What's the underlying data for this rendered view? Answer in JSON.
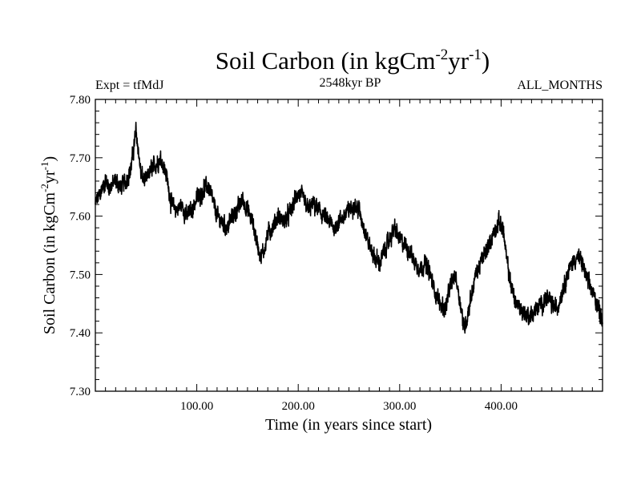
{
  "chart_data": {
    "type": "line",
    "title": {
      "main": "Soil Carbon (in kgCm",
      "sup1": "-2",
      "mid": "yr",
      "sup2": "-1",
      "end": ")"
    },
    "experiment_label": "Expt = tfMdJ",
    "period_label": "2548kyr BP",
    "months_label": "ALL_MONTHS",
    "xlabel": "Time (in years since start)",
    "ylabel": {
      "main": "Soil Carbon (in kgCm",
      "sup1": "-2",
      "mid": "yr",
      "sup2": "-1",
      "end": ")"
    },
    "xlim": [
      0,
      500
    ],
    "ylim": [
      7.3,
      7.8
    ],
    "x_ticks": [
      {
        "value": 100,
        "label": "100.00"
      },
      {
        "value": 200,
        "label": "200.00"
      },
      {
        "value": 300,
        "label": "300.00"
      },
      {
        "value": 400,
        "label": "400.00"
      }
    ],
    "y_ticks": [
      {
        "value": 7.3,
        "label": "7.30"
      },
      {
        "value": 7.4,
        "label": "7.40"
      },
      {
        "value": 7.5,
        "label": "7.50"
      },
      {
        "value": 7.6,
        "label": "7.60"
      },
      {
        "value": 7.7,
        "label": "7.70"
      },
      {
        "value": 7.8,
        "label": "7.80"
      }
    ],
    "series": [
      {
        "name": "Soil Carbon",
        "color": "#000000",
        "noise_amplitude": 0.018,
        "x": [
          0,
          5,
          10,
          15,
          20,
          25,
          30,
          35,
          38,
          40,
          42,
          45,
          50,
          55,
          60,
          65,
          70,
          75,
          80,
          85,
          90,
          95,
          100,
          105,
          108,
          112,
          115,
          120,
          125,
          130,
          135,
          140,
          145,
          150,
          155,
          160,
          163,
          166,
          170,
          175,
          180,
          185,
          190,
          195,
          200,
          205,
          210,
          215,
          220,
          225,
          230,
          235,
          240,
          245,
          250,
          255,
          260,
          265,
          270,
          275,
          280,
          285,
          290,
          295,
          300,
          305,
          310,
          315,
          320,
          325,
          330,
          335,
          340,
          345,
          350,
          355,
          360,
          363,
          366,
          370,
          375,
          380,
          385,
          390,
          395,
          398,
          402,
          405,
          410,
          415,
          420,
          425,
          430,
          435,
          440,
          445,
          450,
          455,
          460,
          465,
          470,
          475,
          480,
          485,
          490,
          495,
          500
        ],
        "values": [
          7.62,
          7.64,
          7.66,
          7.65,
          7.66,
          7.65,
          7.66,
          7.68,
          7.72,
          7.745,
          7.72,
          7.67,
          7.66,
          7.68,
          7.69,
          7.7,
          7.67,
          7.62,
          7.61,
          7.62,
          7.6,
          7.61,
          7.63,
          7.64,
          7.65,
          7.65,
          7.63,
          7.6,
          7.59,
          7.58,
          7.6,
          7.61,
          7.63,
          7.61,
          7.59,
          7.55,
          7.53,
          7.54,
          7.57,
          7.58,
          7.6,
          7.59,
          7.6,
          7.62,
          7.64,
          7.63,
          7.61,
          7.62,
          7.61,
          7.6,
          7.59,
          7.58,
          7.59,
          7.6,
          7.61,
          7.62,
          7.61,
          7.58,
          7.55,
          7.53,
          7.52,
          7.54,
          7.56,
          7.58,
          7.56,
          7.55,
          7.54,
          7.52,
          7.51,
          7.52,
          7.5,
          7.47,
          7.45,
          7.44,
          7.48,
          7.5,
          7.45,
          7.41,
          7.42,
          7.46,
          7.5,
          7.52,
          7.54,
          7.56,
          7.58,
          7.59,
          7.58,
          7.53,
          7.48,
          7.45,
          7.44,
          7.43,
          7.43,
          7.44,
          7.45,
          7.46,
          7.45,
          7.44,
          7.47,
          7.5,
          7.52,
          7.53,
          7.52,
          7.49,
          7.47,
          7.45,
          7.42
        ]
      }
    ]
  }
}
